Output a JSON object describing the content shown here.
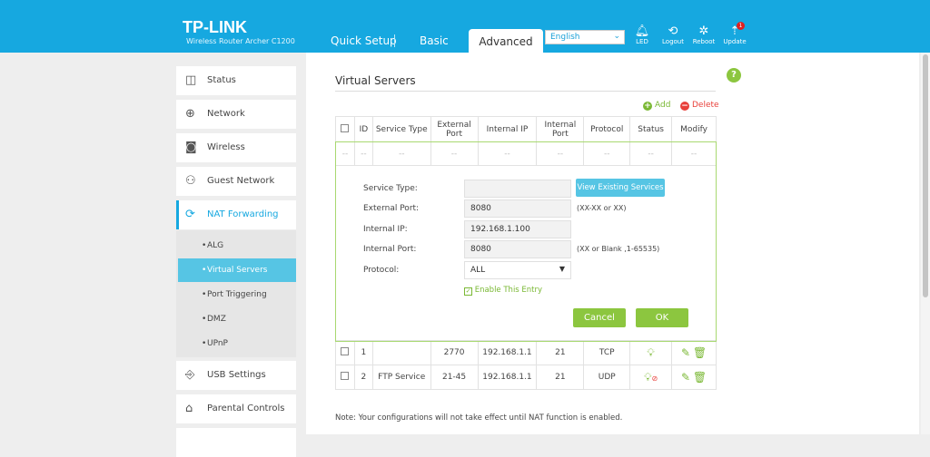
{
  "header": {
    "logo": "TP-LINK",
    "model": "Wireless Router Archer C1200",
    "tabs": [
      "Quick Setup",
      "Basic",
      "Advanced"
    ],
    "active_tab": "Advanced",
    "language": "English",
    "icons": [
      {
        "name": "led",
        "label": "LED"
      },
      {
        "name": "logout",
        "label": "Logout"
      },
      {
        "name": "reboot",
        "label": "Reboot"
      },
      {
        "name": "update",
        "label": "Update",
        "badge": "1"
      }
    ]
  },
  "sidebar": {
    "items": [
      {
        "label": "Status",
        "icon": "status-icon"
      },
      {
        "label": "Network",
        "icon": "globe-icon"
      },
      {
        "label": "Wireless",
        "icon": "wireless-icon"
      },
      {
        "label": "Guest Network",
        "icon": "guest-icon"
      },
      {
        "label": "NAT Forwarding",
        "icon": "nat-icon"
      },
      {
        "label": "USB Settings",
        "icon": "usb-icon"
      },
      {
        "label": "Parental Controls",
        "icon": "parental-icon"
      }
    ],
    "subitems": [
      "ALG",
      "Virtual Servers",
      "Port Triggering",
      "DMZ",
      "UPnP"
    ],
    "active_subitem": "Virtual Servers"
  },
  "main": {
    "title": "Virtual Servers",
    "add": "Add",
    "delete": "Delete",
    "help": "?",
    "columns": [
      "ID",
      "Service Type",
      "External Port",
      "Internal IP",
      "Internal Port",
      "Protocol",
      "Status",
      "Modify"
    ],
    "placeholder": "--",
    "rows": [
      {
        "id": "1",
        "service": "",
        "ext": "2770",
        "ip": "192.168.1.1",
        "int": "21",
        "proto": "TCP",
        "status": "enabled"
      },
      {
        "id": "2",
        "service": "FTP Service",
        "ext": "21-45",
        "ip": "192.168.1.1",
        "int": "21",
        "proto": "UDP",
        "status": "disabled"
      }
    ],
    "form": {
      "service_type_label": "Service Type:",
      "service_type": "",
      "view_existing": "View Existing Services",
      "external_port_label": "External Port:",
      "external_port": "8080",
      "external_hint": "(XX-XX or XX)",
      "internal_ip_label": "Internal IP:",
      "internal_ip": "192.168.1.100",
      "internal_port_label": "Internal Port:",
      "internal_port": "8080",
      "internal_hint": "(XX or Blank ,1-65535)",
      "protocol_label": "Protocol:",
      "protocol": "ALL",
      "enable_label": "Enable This Entry",
      "enabled": true,
      "cancel": "Cancel",
      "ok": "OK"
    },
    "note": "Note: Your configurations will not take effect until NAT function is enabled."
  },
  "colors": {
    "header": "#16a8e0",
    "accent_green": "#8cc63f",
    "delete_red": "#e8403a",
    "active_sub": "#56c5e4"
  }
}
